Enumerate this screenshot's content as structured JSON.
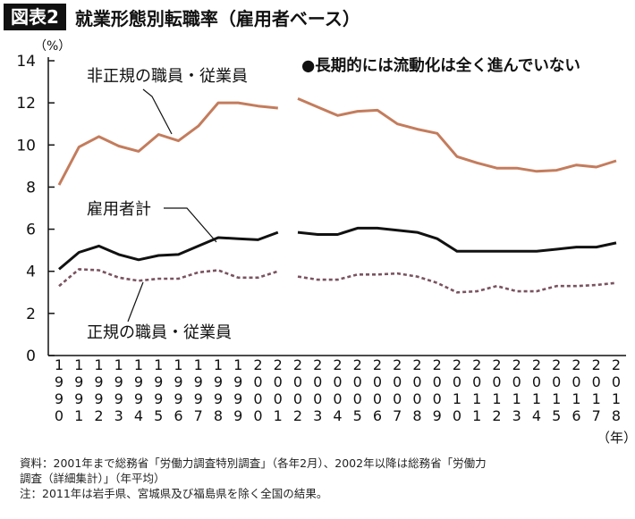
{
  "figure": {
    "badge": "図表2",
    "title": "就業形態別転職率（雇用者ベース）"
  },
  "chart_data": {
    "type": "line",
    "yunit": "（%）",
    "xunit": "（年）",
    "ylim": [
      0,
      14
    ],
    "yticks": [
      0,
      2,
      4,
      6,
      8,
      10,
      12,
      14
    ],
    "x": [
      1990,
      1991,
      1992,
      1993,
      1994,
      1995,
      1996,
      1997,
      1998,
      1999,
      2000,
      2001,
      2002,
      2003,
      2004,
      2005,
      2006,
      2007,
      2008,
      2009,
      2010,
      2011,
      2012,
      2013,
      2014,
      2015,
      2016,
      2017,
      2018
    ],
    "xtick_labels": [
      "1990",
      "1991",
      "1992",
      "1993",
      "1994",
      "1995",
      "1996",
      "1997",
      "1998",
      "1999",
      "2000",
      "2001",
      "2002",
      "2003",
      "2004",
      "2005",
      "2006",
      "2007",
      "2008",
      "2009",
      "2010",
      "2011",
      "2012",
      "2013",
      "2014",
      "2015",
      "2016",
      "2017",
      "2018"
    ],
    "gap_after": 2001,
    "annotation": "●長期的には流動化は全く進んでいない",
    "series": [
      {
        "name": "非正規の職員・従業員",
        "color": "#c47c5c",
        "style": "solid",
        "values": [
          8.1,
          9.9,
          10.4,
          9.95,
          9.7,
          10.5,
          10.2,
          10.9,
          12.0,
          12.0,
          11.85,
          11.75,
          12.2,
          11.8,
          11.4,
          11.6,
          11.65,
          11.0,
          10.75,
          10.55,
          9.45,
          9.15,
          8.9,
          8.9,
          8.75,
          8.8,
          9.05,
          8.95,
          9.25
        ]
      },
      {
        "name": "雇用者計",
        "color": "#111111",
        "style": "solid",
        "values": [
          4.1,
          4.9,
          5.2,
          4.8,
          4.55,
          4.75,
          4.8,
          5.2,
          5.6,
          5.55,
          5.5,
          5.85,
          5.85,
          5.75,
          5.75,
          6.05,
          6.05,
          5.95,
          5.85,
          5.55,
          4.95,
          4.95,
          4.95,
          4.95,
          4.95,
          5.05,
          5.15,
          5.15,
          5.35
        ]
      },
      {
        "name": "正規の職員・従業員",
        "color": "#7a5360",
        "style": "dashed",
        "values": [
          3.3,
          4.1,
          4.05,
          3.7,
          3.55,
          3.65,
          3.65,
          3.95,
          4.05,
          3.7,
          3.7,
          4.0,
          3.75,
          3.6,
          3.6,
          3.85,
          3.85,
          3.9,
          3.75,
          3.45,
          3.0,
          3.05,
          3.3,
          3.05,
          3.05,
          3.3,
          3.3,
          3.35,
          3.45
        ]
      }
    ]
  },
  "footnotes": [
    "資料：2001年まで総務省「労働力調査特別調査」（各年2月）、2002年以降は総務省「労働力",
    "調査（詳細集計）」（年平均）",
    "注：2011年は岩手県、宮城県及び福島県を除く全国の結果。"
  ]
}
